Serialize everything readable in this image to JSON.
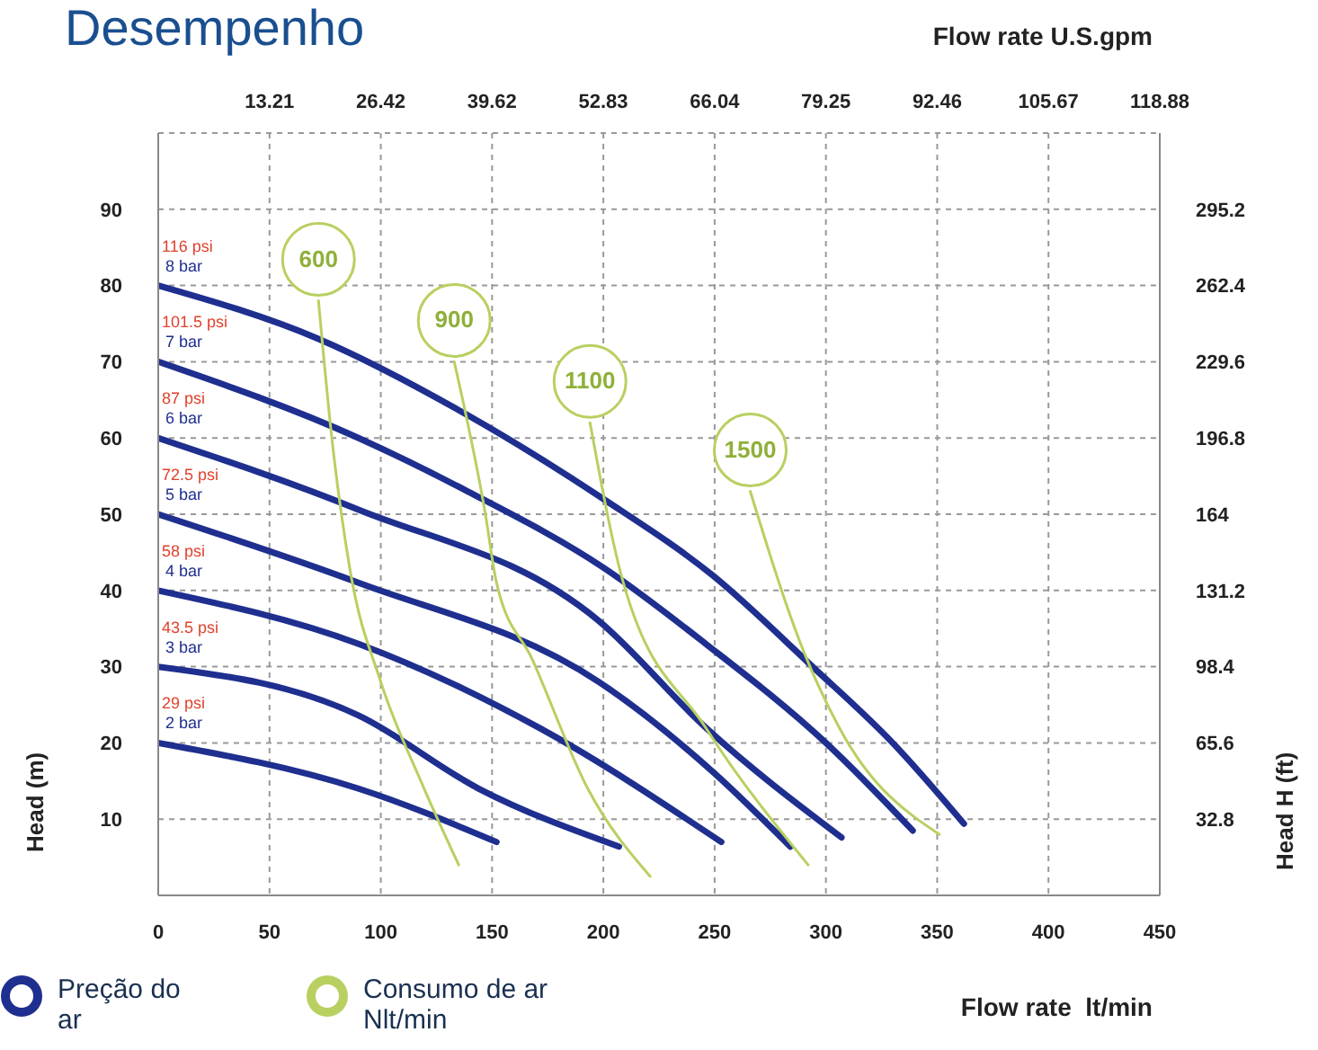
{
  "chart_data": {
    "type": "line",
    "title": "Desempenho",
    "xlabel": "Flow rate  lt/min",
    "x2label": "Flow rate U.S.gpm",
    "ylabel": "Head (m)",
    "y2label": "Head H (ft)",
    "xlim": [
      0,
      450
    ],
    "xticks": [
      0,
      50,
      100,
      150,
      200,
      250,
      300,
      350,
      400,
      450
    ],
    "x2lim": [
      0,
      118.88
    ],
    "x2ticks": [
      13.21,
      26.42,
      39.62,
      52.83,
      66.04,
      79.25,
      92.46,
      105.67,
      118.88
    ],
    "ylim": [
      0,
      100
    ],
    "yticks": [
      10,
      20,
      30,
      40,
      50,
      60,
      70,
      80,
      90
    ],
    "y2lim": [
      0,
      328
    ],
    "y2ticks": [
      32.8,
      65.6,
      98.4,
      131.2,
      164,
      196.8,
      229.6,
      262.4,
      295.2
    ],
    "grid": true,
    "legend": false,
    "line_style": "solid",
    "marker": "none",
    "series": [
      {
        "name": "8 bar",
        "color": "#1f2f8f",
        "x": [
          0,
          72,
          139,
          200,
          249,
          294,
          330,
          362
        ],
        "values": [
          80,
          73,
          63,
          52,
          42,
          30,
          20,
          9.4
        ]
      },
      {
        "name": "7 bar",
        "color": "#1f2f8f",
        "x": [
          0,
          90,
          139,
          200,
          246,
          300,
          339
        ],
        "values": [
          70,
          60,
          53,
          43,
          33,
          20,
          8.5
        ]
      },
      {
        "name": "6 bar",
        "color": "#1f2f8f",
        "x": [
          0,
          90,
          198,
          246,
          307
        ],
        "values": [
          60,
          50.6,
          36,
          22,
          7.6
        ]
      },
      {
        "name": "5 bar",
        "color": "#1f2f8f",
        "x": [
          0,
          90,
          198,
          250,
          284
        ],
        "values": [
          50,
          41,
          28,
          16,
          6.4
        ]
      },
      {
        "name": "4 bar",
        "color": "#1f2f8f",
        "x": [
          0,
          90,
          171,
          253
        ],
        "values": [
          40,
          33,
          22,
          7
        ]
      },
      {
        "name": "3 bar",
        "color": "#1f2f8f",
        "x": [
          0,
          90,
          144,
          207
        ],
        "values": [
          30,
          23.6,
          14,
          6.4
        ]
      },
      {
        "name": "2 bar",
        "color": "#1f2f8f",
        "x": [
          0,
          90,
          152
        ],
        "values": [
          20,
          14,
          7
        ]
      },
      {
        "name": "600",
        "color": "#b8d060",
        "x": [
          72,
          78,
          86,
          100,
          118,
          135
        ],
        "values": [
          78,
          60,
          43,
          28,
          15,
          4
        ]
      },
      {
        "name": "900",
        "color": "#b8d060",
        "x": [
          133,
          147,
          152,
          168,
          193,
          221
        ],
        "values": [
          70,
          50,
          41,
          31,
          14,
          2.5
        ]
      },
      {
        "name": "1100",
        "color": "#b8d060",
        "x": [
          194,
          209,
          246,
          292
        ],
        "values": [
          62,
          41,
          22,
          4
        ]
      },
      {
        "name": "1500",
        "color": "#b8d060",
        "x": [
          266,
          290,
          306,
          351
        ],
        "values": [
          53,
          32,
          22,
          8
        ]
      }
    ],
    "annotations": [
      "116 psi",
      "101.5 psi",
      "87 psi",
      "72.5 psi",
      "58 psi",
      "43.5 psi",
      "29 psi",
      "Preção do ar",
      "Consumo de ar Nlt/min"
    ]
  }
}
